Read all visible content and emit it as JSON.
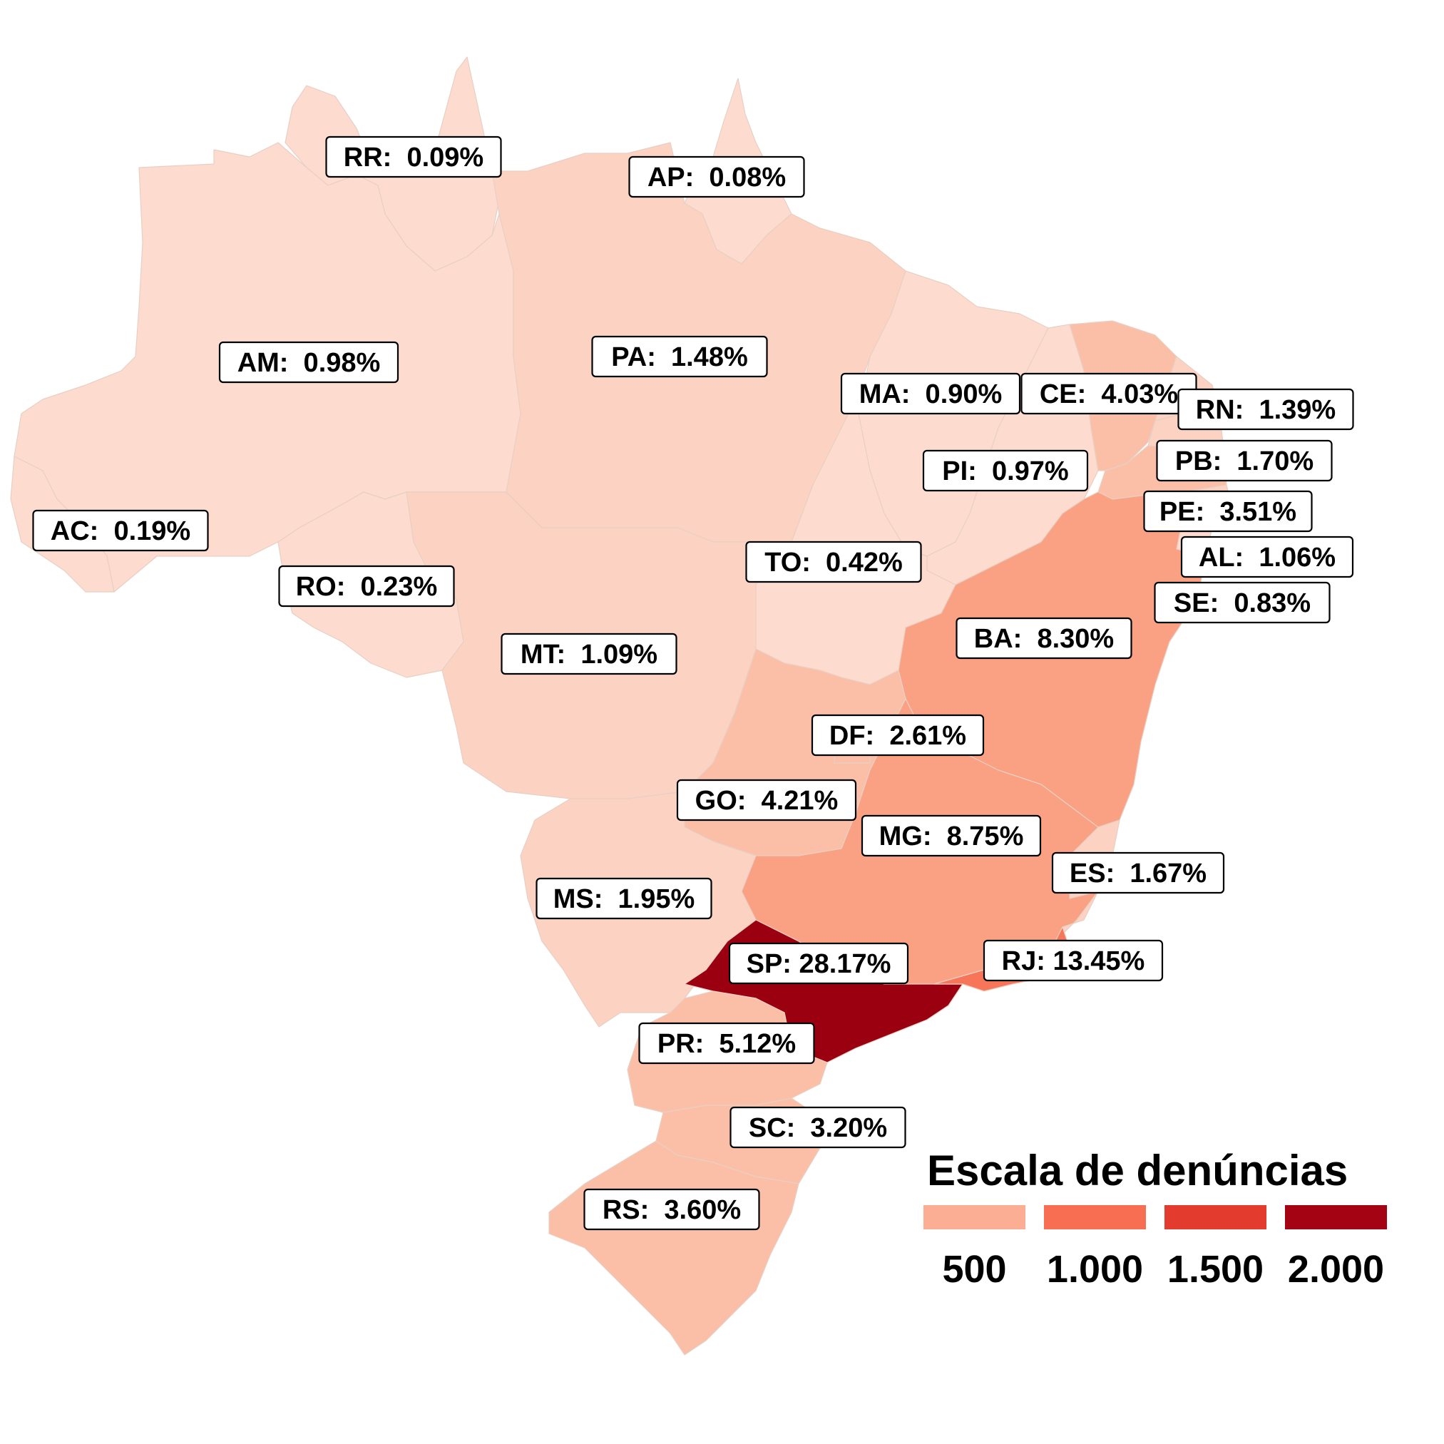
{
  "colors": {
    "very_low": "#fddccf",
    "low": "#fcd2c2",
    "mid_low": "#fbbfa8",
    "mid": "#fba183",
    "mid_high": "#f7765a",
    "high": "#e3372a",
    "max": "#9b0010",
    "background": "#ffffff"
  },
  "states": [
    {
      "code": "RR",
      "label": "RR:  0.09%",
      "share": 0.09
    },
    {
      "code": "AP",
      "label": "AP:  0.08%",
      "share": 0.08
    },
    {
      "code": "AM",
      "label": "AM:  0.98%",
      "share": 0.98
    },
    {
      "code": "PA",
      "label": "PA:  1.48%",
      "share": 1.48
    },
    {
      "code": "MA",
      "label": "MA:  0.90%",
      "share": 0.9
    },
    {
      "code": "CE",
      "label": "CE:  4.03%",
      "share": 4.03
    },
    {
      "code": "RN",
      "label": "RN:  1.39%",
      "share": 1.39
    },
    {
      "code": "PB",
      "label": "PB:  1.70%",
      "share": 1.7
    },
    {
      "code": "PI",
      "label": "PI:  0.97%",
      "share": 0.97
    },
    {
      "code": "PE",
      "label": "PE:  3.51%",
      "share": 3.51
    },
    {
      "code": "AC",
      "label": "AC:  0.19%",
      "share": 0.19
    },
    {
      "code": "AL",
      "label": "AL:  1.06%",
      "share": 1.06
    },
    {
      "code": "TO",
      "label": "TO:  0.42%",
      "share": 0.42
    },
    {
      "code": "RO",
      "label": "RO:  0.23%",
      "share": 0.23
    },
    {
      "code": "SE",
      "label": "SE:  0.83%",
      "share": 0.83
    },
    {
      "code": "BA",
      "label": "BA:  8.30%",
      "share": 8.3
    },
    {
      "code": "MT",
      "label": "MT:  1.09%",
      "share": 1.09
    },
    {
      "code": "DF",
      "label": "DF:  2.61%",
      "share": 2.61
    },
    {
      "code": "GO",
      "label": "GO:  4.21%",
      "share": 4.21
    },
    {
      "code": "MG",
      "label": "MG:  8.75%",
      "share": 8.75
    },
    {
      "code": "ES",
      "label": "ES:  1.67%",
      "share": 1.67
    },
    {
      "code": "MS",
      "label": "MS:  1.95%",
      "share": 1.95
    },
    {
      "code": "SP",
      "label": "SP: 28.17%",
      "share": 28.17
    },
    {
      "code": "RJ",
      "label": "RJ: 13.45%",
      "share": 13.45
    },
    {
      "code": "PR",
      "label": "PR:  5.12%",
      "share": 5.12
    },
    {
      "code": "SC",
      "label": "SC:  3.20%",
      "share": 3.2
    },
    {
      "code": "RS",
      "label": "RS:  3.60%",
      "share": 3.6
    }
  ],
  "legend": {
    "title": "Escala de denúncias",
    "ticks": [
      "500",
      "1.000",
      "1.500",
      "2.000"
    ],
    "colors": [
      "#fbae93",
      "#f76e52",
      "#e33b2e",
      "#a30312"
    ]
  }
}
